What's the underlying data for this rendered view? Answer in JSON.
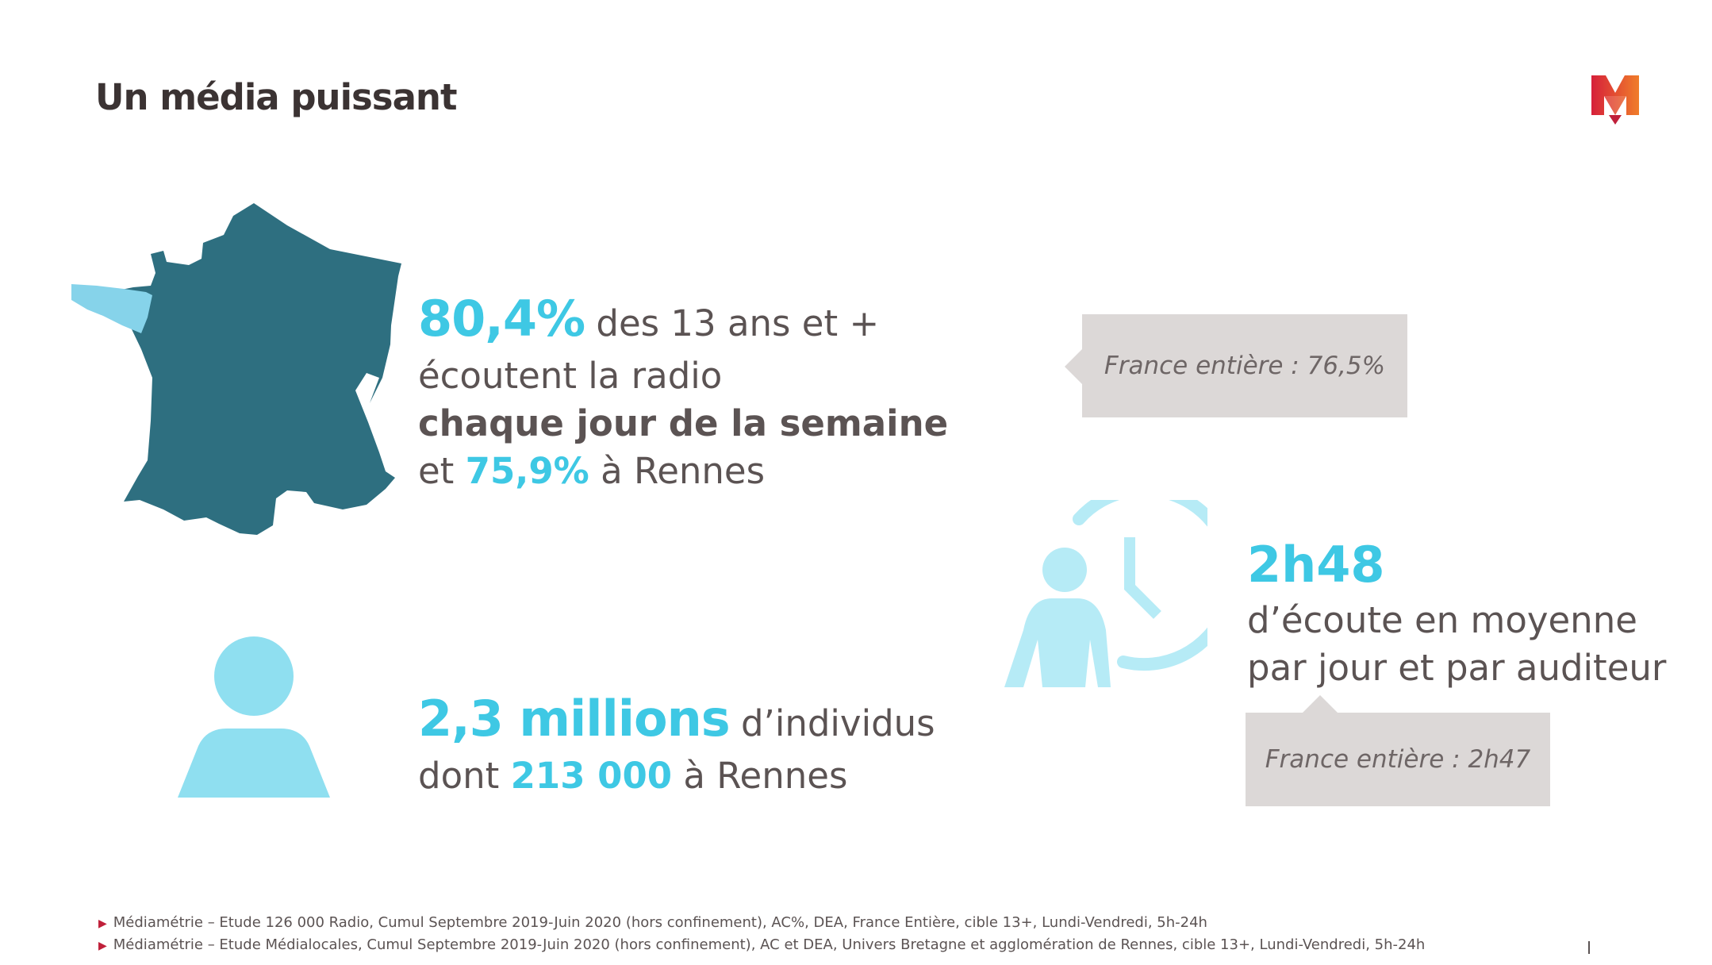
{
  "slide": {
    "title": "Un média puissant"
  },
  "stat_reach": {
    "pct_big": "80,4%",
    "line1_rest": " des 13 ans et +",
    "line2": "écoutent la radio",
    "line3_bold": "chaque jour de la semaine",
    "line4_pre": "et ",
    "line4_pct": "75,9%",
    "line4_post": " à Rennes"
  },
  "bubble_reach": {
    "text": "France entière : 76,5%"
  },
  "stat_people": {
    "big": "2,3 millions",
    "line1_rest": " d’individus",
    "line2_pre": "dont ",
    "line2_num": "213 000",
    "line2_post": " à Rennes"
  },
  "stat_duration": {
    "big": "2h48",
    "line1": "d’écoute en moyenne",
    "line2": "par jour et par auditeur"
  },
  "bubble_duration": {
    "text": "France entière : 2h47"
  },
  "footnotes": [
    "Médiamétrie – Etude 126 000 Radio, Cumul Septembre 2019-Juin 2020 (hors confinement), AC%, DEA, France Entière, cible 13+, Lundi-Vendredi, 5h-24h",
    "Médiamétrie – Etude Médialocales, Cumul Septembre 2019-Juin 2020 (hors confinement), AC et DEA, Univers Bretagne et agglomération de Rennes, cible 13+, Lundi-Vendredi, 5h-24h"
  ],
  "icons": {
    "map": "france-map-icon",
    "person": "person-icon",
    "clock_person": "clock-person-icon",
    "logo": "m-logo-icon",
    "bullet": "triangle-bullet-icon"
  },
  "colors": {
    "accent": "#3ec8e4",
    "map_dark": "#2e6f80",
    "map_highlight": "#86d3ea",
    "icon_light": "#8fdff0",
    "bubble_bg": "#dcd8d7",
    "text": "#5b5353",
    "logo_red": "#d6203a",
    "logo_orange": "#f07d2a"
  }
}
